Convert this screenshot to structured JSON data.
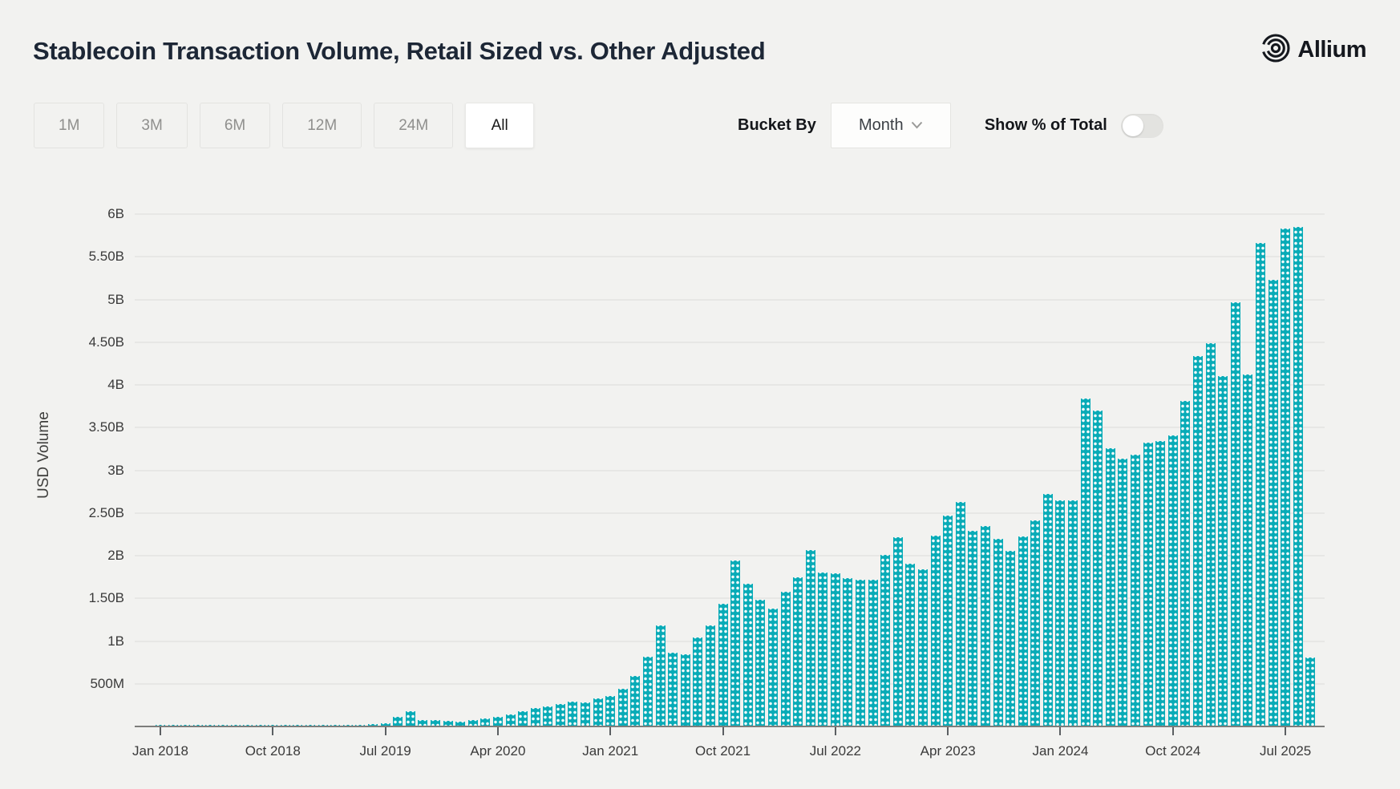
{
  "header": {
    "title": "Stablecoin Transaction Volume, Retail Sized vs. Other Adjusted",
    "brand": "Allium"
  },
  "icons": {
    "brand_logo": "concentric-circles",
    "bucket_dropdown": "chevron-down"
  },
  "controls": {
    "ranges": [
      {
        "label": "1M",
        "selected": false
      },
      {
        "label": "3M",
        "selected": false
      },
      {
        "label": "6M",
        "selected": false
      },
      {
        "label": "12M",
        "selected": false
      },
      {
        "label": "24M",
        "selected": false
      },
      {
        "label": "All",
        "selected": true
      }
    ],
    "bucket_by_label": "Bucket By",
    "bucket_value": "Month",
    "toggle_label": "Show % of Total",
    "toggle_on": false
  },
  "chart_data": {
    "type": "bar",
    "title": "Stablecoin Transaction Volume, Retail Sized vs. Other Adjusted",
    "xlabel": "",
    "ylabel": "USD Volume",
    "unit": "billions USD",
    "bar_color": "#08abb7",
    "grid": true,
    "ylim": [
      0,
      6.3
    ],
    "y_ticks": [
      {
        "value": 0.5,
        "label": "500M"
      },
      {
        "value": 1,
        "label": "1B"
      },
      {
        "value": 1.5,
        "label": "1.50B"
      },
      {
        "value": 2,
        "label": "2B"
      },
      {
        "value": 2.5,
        "label": "2.50B"
      },
      {
        "value": 3,
        "label": "3B"
      },
      {
        "value": 3.5,
        "label": "3.50B"
      },
      {
        "value": 4,
        "label": "4B"
      },
      {
        "value": 4.5,
        "label": "4.50B"
      },
      {
        "value": 5,
        "label": "5B"
      },
      {
        "value": 5.5,
        "label": "5.50B"
      },
      {
        "value": 6,
        "label": "6B"
      }
    ],
    "x_ticks": [
      {
        "month_index": 0,
        "label": "Jan 2018"
      },
      {
        "month_index": 9,
        "label": "Oct 2018"
      },
      {
        "month_index": 18,
        "label": "Jul 2019"
      },
      {
        "month_index": 27,
        "label": "Apr 2020"
      },
      {
        "month_index": 36,
        "label": "Jan 2021"
      },
      {
        "month_index": 45,
        "label": "Oct 2021"
      },
      {
        "month_index": 54,
        "label": "Jul 2022"
      },
      {
        "month_index": 63,
        "label": "Apr 2023"
      },
      {
        "month_index": 72,
        "label": "Jan 2024"
      },
      {
        "month_index": 81,
        "label": "Oct 2024"
      },
      {
        "month_index": 90,
        "label": "Jul 2025"
      }
    ],
    "x": [
      "Jan 2018",
      "Feb 2018",
      "Mar 2018",
      "Apr 2018",
      "May 2018",
      "Jun 2018",
      "Jul 2018",
      "Aug 2018",
      "Sep 2018",
      "Oct 2018",
      "Nov 2018",
      "Dec 2018",
      "Jan 2019",
      "Feb 2019",
      "Mar 2019",
      "Apr 2019",
      "May 2019",
      "Jun 2019",
      "Jul 2019",
      "Aug 2019",
      "Sep 2019",
      "Oct 2019",
      "Nov 2019",
      "Dec 2019",
      "Jan 2020",
      "Feb 2020",
      "Mar 2020",
      "Apr 2020",
      "May 2020",
      "Jun 2020",
      "Jul 2020",
      "Aug 2020",
      "Sep 2020",
      "Oct 2020",
      "Nov 2020",
      "Dec 2020",
      "Jan 2021",
      "Feb 2021",
      "Mar 2021",
      "Apr 2021",
      "May 2021",
      "Jun 2021",
      "Jul 2021",
      "Aug 2021",
      "Sep 2021",
      "Oct 2021",
      "Nov 2021",
      "Dec 2021",
      "Jan 2022",
      "Feb 2022",
      "Mar 2022",
      "Apr 2022",
      "May 2022",
      "Jun 2022",
      "Jul 2022",
      "Aug 2022",
      "Sep 2022",
      "Oct 2022",
      "Nov 2022",
      "Dec 2022",
      "Jan 2023",
      "Feb 2023",
      "Mar 2023",
      "Apr 2023",
      "May 2023",
      "Jun 2023",
      "Jul 2023",
      "Aug 2023",
      "Sep 2023",
      "Oct 2023",
      "Nov 2023",
      "Dec 2023",
      "Jan 2024",
      "Feb 2024",
      "Mar 2024",
      "Apr 2024",
      "May 2024",
      "Jun 2024",
      "Jul 2024",
      "Aug 2024",
      "Sep 2024",
      "Oct 2024",
      "Nov 2024",
      "Dec 2024",
      "Jan 2025",
      "Feb 2025",
      "Mar 2025",
      "Apr 2025",
      "May 2025",
      "Jun 2025",
      "Jul 2025",
      "Aug 2025",
      "Sep 2025"
    ],
    "values": [
      0.005,
      0.005,
      0.005,
      0.005,
      0.005,
      0.005,
      0.006,
      0.006,
      0.006,
      0.007,
      0.007,
      0.007,
      0.008,
      0.008,
      0.008,
      0.009,
      0.012,
      0.018,
      0.03,
      0.1,
      0.165,
      0.065,
      0.065,
      0.055,
      0.05,
      0.065,
      0.085,
      0.105,
      0.13,
      0.17,
      0.21,
      0.23,
      0.25,
      0.28,
      0.27,
      0.32,
      0.35,
      0.43,
      0.58,
      0.81,
      1.17,
      0.85,
      0.84,
      1.03,
      1.17,
      1.43,
      1.93,
      1.66,
      1.47,
      1.37,
      1.57,
      1.74,
      2.06,
      1.79,
      1.78,
      1.73,
      1.71,
      1.71,
      2.0,
      2.21,
      1.9,
      1.83,
      2.23,
      2.46,
      2.62,
      2.28,
      2.34,
      2.19,
      2.05,
      2.22,
      2.4,
      2.71,
      2.64,
      2.64,
      3.83,
      3.69,
      3.25,
      3.13,
      3.17,
      3.31,
      3.33,
      3.4,
      3.8,
      4.33,
      4.48,
      4.09,
      4.96,
      4.11,
      5.65,
      5.22,
      5.82,
      5.84,
      0.8
    ]
  }
}
